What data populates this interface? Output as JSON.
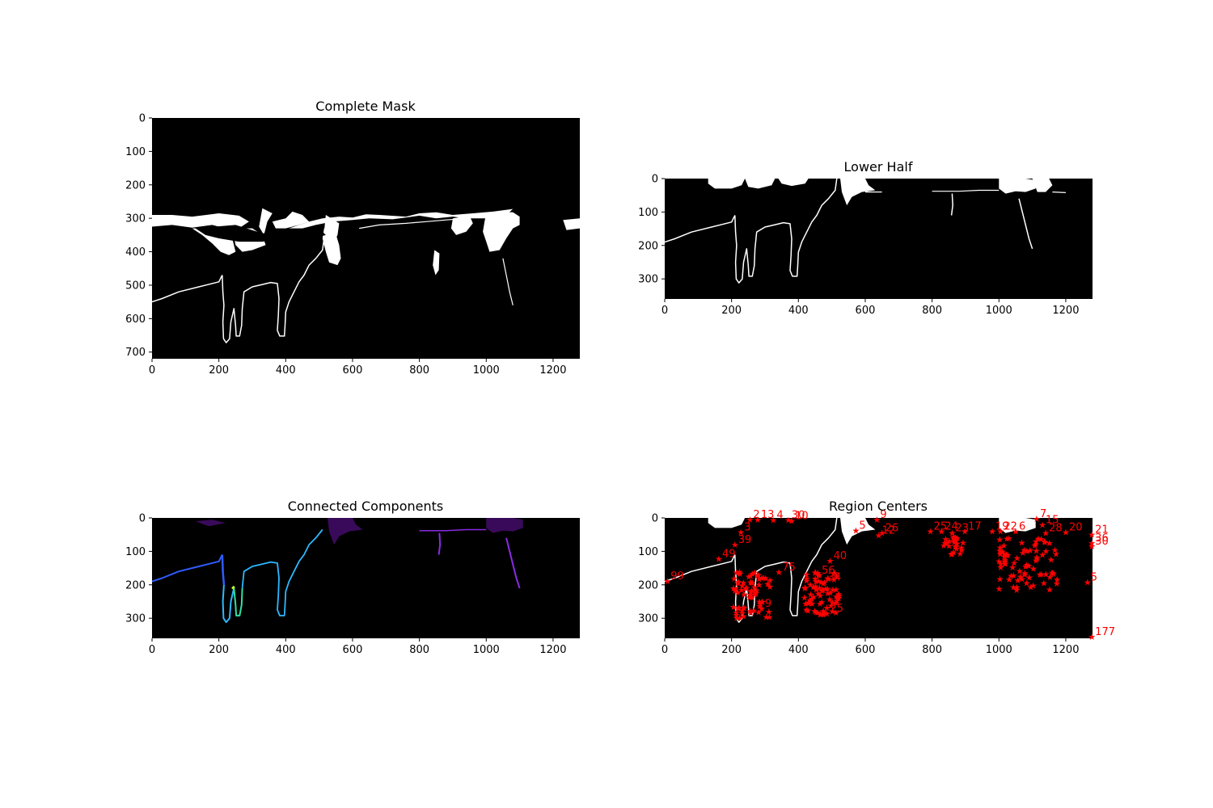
{
  "figure": {
    "panels": [
      {
        "id": "complete",
        "title": "Complete Mask"
      },
      {
        "id": "lower",
        "title": "Lower Half"
      },
      {
        "id": "components",
        "title": "Connected Components"
      },
      {
        "id": "centers",
        "title": "Region Centers"
      }
    ]
  },
  "chart_data": [
    {
      "type": "heatmap",
      "title": "Complete Mask",
      "colormap": "gray",
      "xlim": [
        0,
        1280
      ],
      "ylim": [
        720,
        0
      ],
      "xticks": [
        0,
        200,
        400,
        600,
        800,
        1000,
        1200
      ],
      "yticks": [
        0,
        100,
        200,
        300,
        400,
        500,
        600,
        700
      ],
      "foreground_color": "#ffffff",
      "background_color": "#000000"
    },
    {
      "type": "heatmap",
      "title": "Lower Half",
      "colormap": "gray",
      "xlim": [
        0,
        1280
      ],
      "ylim": [
        360,
        0
      ],
      "xticks": [
        0,
        200,
        400,
        600,
        800,
        1000,
        1200
      ],
      "yticks": [
        0,
        100,
        200,
        300
      ],
      "foreground_color": "#ffffff",
      "background_color": "#000000"
    },
    {
      "type": "heatmap",
      "title": "Connected Components",
      "colormap": "nipy_spectral",
      "xlim": [
        0,
        1280
      ],
      "ylim": [
        360,
        0
      ],
      "xticks": [
        0,
        200,
        400,
        600,
        800,
        1000,
        1200
      ],
      "yticks": [
        0,
        100,
        200,
        300
      ],
      "component_colors": [
        "#3a0a5a",
        "#2f5cff",
        "#2fb8ff",
        "#30e0a0",
        "#c0ff30",
        "#8a2be2"
      ]
    },
    {
      "type": "scatter",
      "title": "Region Centers",
      "xlim": [
        0,
        1280
      ],
      "ylim": [
        360,
        0
      ],
      "xticks": [
        0,
        200,
        400,
        600,
        800,
        1000,
        1200
      ],
      "yticks": [
        0,
        100,
        200,
        300
      ],
      "marker": "*",
      "marker_color": "#ff0000",
      "points": [
        {
          "label": "2",
          "x": 255,
          "y": 5
        },
        {
          "label": "13",
          "x": 278,
          "y": 5
        },
        {
          "label": "4",
          "x": 325,
          "y": 6
        },
        {
          "label": "30",
          "x": 370,
          "y": 6
        },
        {
          "label": "10",
          "x": 380,
          "y": 8
        },
        {
          "label": "9",
          "x": 635,
          "y": 5
        },
        {
          "label": "5",
          "x": 572,
          "y": 38
        },
        {
          "label": "26",
          "x": 650,
          "y": 45
        },
        {
          "label": "12",
          "x": 640,
          "y": 52
        },
        {
          "label": "25",
          "x": 795,
          "y": 40
        },
        {
          "label": "24",
          "x": 828,
          "y": 40
        },
        {
          "label": "23",
          "x": 860,
          "y": 45
        },
        {
          "label": "17",
          "x": 898,
          "y": 40
        },
        {
          "label": "19",
          "x": 980,
          "y": 40
        },
        {
          "label": "22",
          "x": 1005,
          "y": 40
        },
        {
          "label": "6",
          "x": 1050,
          "y": 40
        },
        {
          "label": "7",
          "x": 1113,
          "y": 3
        },
        {
          "label": "15",
          "x": 1130,
          "y": 20
        },
        {
          "label": "28",
          "x": 1140,
          "y": 45
        },
        {
          "label": "20",
          "x": 1200,
          "y": 42
        },
        {
          "label": "21",
          "x": 1278,
          "y": 50
        },
        {
          "label": "36",
          "x": 1278,
          "y": 75
        },
        {
          "label": "30",
          "x": 1278,
          "y": 85
        },
        {
          "label": "39",
          "x": 210,
          "y": 80
        },
        {
          "label": "3",
          "x": 228,
          "y": 42
        },
        {
          "label": "49",
          "x": 162,
          "y": 122
        },
        {
          "label": "40",
          "x": 495,
          "y": 128
        },
        {
          "label": "75",
          "x": 342,
          "y": 162
        },
        {
          "label": "99",
          "x": 8,
          "y": 188
        },
        {
          "label": "56",
          "x": 460,
          "y": 172
        },
        {
          "label": "34",
          "x": 478,
          "y": 192
        },
        {
          "label": "25",
          "x": 485,
          "y": 285
        },
        {
          "label": "9",
          "x": 290,
          "y": 270
        },
        {
          "label": "5",
          "x": 1265,
          "y": 192
        },
        {
          "label": "177",
          "x": 1278,
          "y": 355
        }
      ],
      "clusters": [
        {
          "x_range": [
            205,
            320
          ],
          "y_range": [
            160,
            300
          ],
          "count": 70
        },
        {
          "x_range": [
            415,
            525
          ],
          "y_range": [
            160,
            290
          ],
          "count": 70
        },
        {
          "x_range": [
            835,
            900
          ],
          "y_range": [
            55,
            110
          ],
          "count": 25
        },
        {
          "x_range": [
            1000,
            1180
          ],
          "y_range": [
            60,
            215
          ],
          "count": 80
        }
      ]
    }
  ]
}
